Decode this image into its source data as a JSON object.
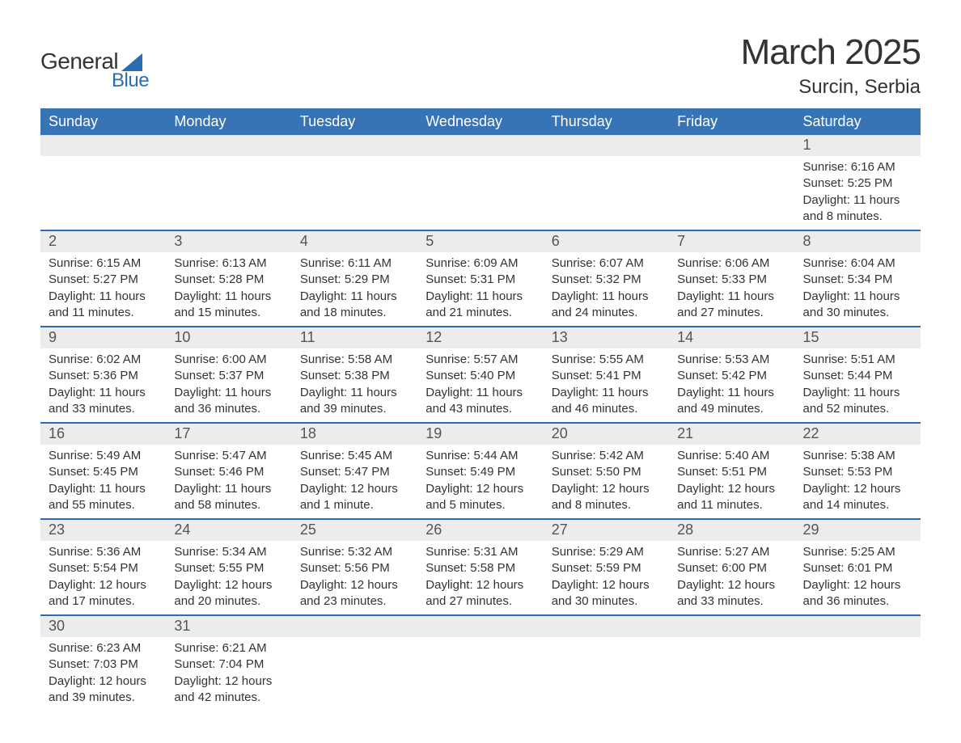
{
  "logo": {
    "line1": "General",
    "line2": "Blue"
  },
  "title": "March 2025",
  "location": "Surcin, Serbia",
  "colors": {
    "header_bg": "#3674b5",
    "header_text": "#ffffff",
    "row_border": "#2a6db3",
    "daynum_bg": "#ececec",
    "text": "#333333",
    "logo_accent": "#2a6db3"
  },
  "day_headers": [
    "Sunday",
    "Monday",
    "Tuesday",
    "Wednesday",
    "Thursday",
    "Friday",
    "Saturday"
  ],
  "weeks": [
    [
      {
        "num": "",
        "lines": [
          "",
          "",
          "",
          ""
        ]
      },
      {
        "num": "",
        "lines": [
          "",
          "",
          "",
          ""
        ]
      },
      {
        "num": "",
        "lines": [
          "",
          "",
          "",
          ""
        ]
      },
      {
        "num": "",
        "lines": [
          "",
          "",
          "",
          ""
        ]
      },
      {
        "num": "",
        "lines": [
          "",
          "",
          "",
          ""
        ]
      },
      {
        "num": "",
        "lines": [
          "",
          "",
          "",
          ""
        ]
      },
      {
        "num": "1",
        "lines": [
          "Sunrise: 6:16 AM",
          "Sunset: 5:25 PM",
          "Daylight: 11 hours",
          "and 8 minutes."
        ]
      }
    ],
    [
      {
        "num": "2",
        "lines": [
          "Sunrise: 6:15 AM",
          "Sunset: 5:27 PM",
          "Daylight: 11 hours",
          "and 11 minutes."
        ]
      },
      {
        "num": "3",
        "lines": [
          "Sunrise: 6:13 AM",
          "Sunset: 5:28 PM",
          "Daylight: 11 hours",
          "and 15 minutes."
        ]
      },
      {
        "num": "4",
        "lines": [
          "Sunrise: 6:11 AM",
          "Sunset: 5:29 PM",
          "Daylight: 11 hours",
          "and 18 minutes."
        ]
      },
      {
        "num": "5",
        "lines": [
          "Sunrise: 6:09 AM",
          "Sunset: 5:31 PM",
          "Daylight: 11 hours",
          "and 21 minutes."
        ]
      },
      {
        "num": "6",
        "lines": [
          "Sunrise: 6:07 AM",
          "Sunset: 5:32 PM",
          "Daylight: 11 hours",
          "and 24 minutes."
        ]
      },
      {
        "num": "7",
        "lines": [
          "Sunrise: 6:06 AM",
          "Sunset: 5:33 PM",
          "Daylight: 11 hours",
          "and 27 minutes."
        ]
      },
      {
        "num": "8",
        "lines": [
          "Sunrise: 6:04 AM",
          "Sunset: 5:34 PM",
          "Daylight: 11 hours",
          "and 30 minutes."
        ]
      }
    ],
    [
      {
        "num": "9",
        "lines": [
          "Sunrise: 6:02 AM",
          "Sunset: 5:36 PM",
          "Daylight: 11 hours",
          "and 33 minutes."
        ]
      },
      {
        "num": "10",
        "lines": [
          "Sunrise: 6:00 AM",
          "Sunset: 5:37 PM",
          "Daylight: 11 hours",
          "and 36 minutes."
        ]
      },
      {
        "num": "11",
        "lines": [
          "Sunrise: 5:58 AM",
          "Sunset: 5:38 PM",
          "Daylight: 11 hours",
          "and 39 minutes."
        ]
      },
      {
        "num": "12",
        "lines": [
          "Sunrise: 5:57 AM",
          "Sunset: 5:40 PM",
          "Daylight: 11 hours",
          "and 43 minutes."
        ]
      },
      {
        "num": "13",
        "lines": [
          "Sunrise: 5:55 AM",
          "Sunset: 5:41 PM",
          "Daylight: 11 hours",
          "and 46 minutes."
        ]
      },
      {
        "num": "14",
        "lines": [
          "Sunrise: 5:53 AM",
          "Sunset: 5:42 PM",
          "Daylight: 11 hours",
          "and 49 minutes."
        ]
      },
      {
        "num": "15",
        "lines": [
          "Sunrise: 5:51 AM",
          "Sunset: 5:44 PM",
          "Daylight: 11 hours",
          "and 52 minutes."
        ]
      }
    ],
    [
      {
        "num": "16",
        "lines": [
          "Sunrise: 5:49 AM",
          "Sunset: 5:45 PM",
          "Daylight: 11 hours",
          "and 55 minutes."
        ]
      },
      {
        "num": "17",
        "lines": [
          "Sunrise: 5:47 AM",
          "Sunset: 5:46 PM",
          "Daylight: 11 hours",
          "and 58 minutes."
        ]
      },
      {
        "num": "18",
        "lines": [
          "Sunrise: 5:45 AM",
          "Sunset: 5:47 PM",
          "Daylight: 12 hours",
          "and 1 minute."
        ]
      },
      {
        "num": "19",
        "lines": [
          "Sunrise: 5:44 AM",
          "Sunset: 5:49 PM",
          "Daylight: 12 hours",
          "and 5 minutes."
        ]
      },
      {
        "num": "20",
        "lines": [
          "Sunrise: 5:42 AM",
          "Sunset: 5:50 PM",
          "Daylight: 12 hours",
          "and 8 minutes."
        ]
      },
      {
        "num": "21",
        "lines": [
          "Sunrise: 5:40 AM",
          "Sunset: 5:51 PM",
          "Daylight: 12 hours",
          "and 11 minutes."
        ]
      },
      {
        "num": "22",
        "lines": [
          "Sunrise: 5:38 AM",
          "Sunset: 5:53 PM",
          "Daylight: 12 hours",
          "and 14 minutes."
        ]
      }
    ],
    [
      {
        "num": "23",
        "lines": [
          "Sunrise: 5:36 AM",
          "Sunset: 5:54 PM",
          "Daylight: 12 hours",
          "and 17 minutes."
        ]
      },
      {
        "num": "24",
        "lines": [
          "Sunrise: 5:34 AM",
          "Sunset: 5:55 PM",
          "Daylight: 12 hours",
          "and 20 minutes."
        ]
      },
      {
        "num": "25",
        "lines": [
          "Sunrise: 5:32 AM",
          "Sunset: 5:56 PM",
          "Daylight: 12 hours",
          "and 23 minutes."
        ]
      },
      {
        "num": "26",
        "lines": [
          "Sunrise: 5:31 AM",
          "Sunset: 5:58 PM",
          "Daylight: 12 hours",
          "and 27 minutes."
        ]
      },
      {
        "num": "27",
        "lines": [
          "Sunrise: 5:29 AM",
          "Sunset: 5:59 PM",
          "Daylight: 12 hours",
          "and 30 minutes."
        ]
      },
      {
        "num": "28",
        "lines": [
          "Sunrise: 5:27 AM",
          "Sunset: 6:00 PM",
          "Daylight: 12 hours",
          "and 33 minutes."
        ]
      },
      {
        "num": "29",
        "lines": [
          "Sunrise: 5:25 AM",
          "Sunset: 6:01 PM",
          "Daylight: 12 hours",
          "and 36 minutes."
        ]
      }
    ],
    [
      {
        "num": "30",
        "lines": [
          "Sunrise: 6:23 AM",
          "Sunset: 7:03 PM",
          "Daylight: 12 hours",
          "and 39 minutes."
        ]
      },
      {
        "num": "31",
        "lines": [
          "Sunrise: 6:21 AM",
          "Sunset: 7:04 PM",
          "Daylight: 12 hours",
          "and 42 minutes."
        ]
      },
      {
        "num": "",
        "lines": [
          "",
          "",
          "",
          ""
        ]
      },
      {
        "num": "",
        "lines": [
          "",
          "",
          "",
          ""
        ]
      },
      {
        "num": "",
        "lines": [
          "",
          "",
          "",
          ""
        ]
      },
      {
        "num": "",
        "lines": [
          "",
          "",
          "",
          ""
        ]
      },
      {
        "num": "",
        "lines": [
          "",
          "",
          "",
          ""
        ]
      }
    ]
  ]
}
